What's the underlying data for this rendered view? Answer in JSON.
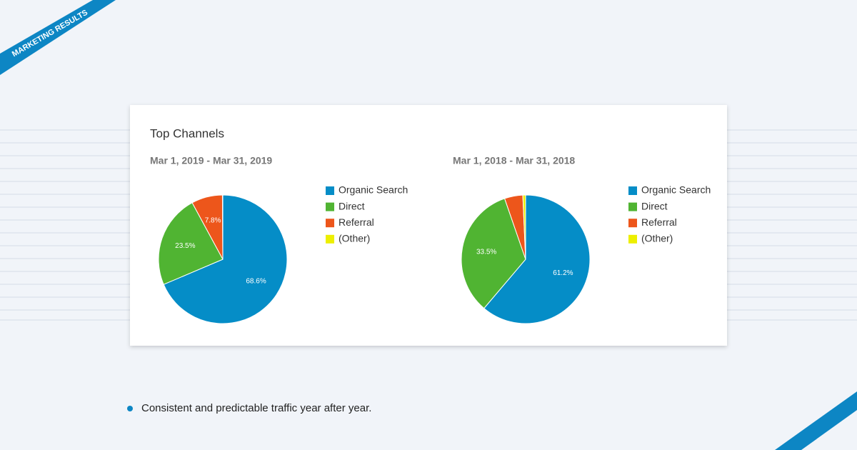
{
  "ribbon": "MARKETING RESULTS",
  "title": "Top Channels",
  "bullet": "Consistent and predictable traffic year after year.",
  "chart_data": [
    {
      "type": "pie",
      "subtitle": "Mar 1, 2019 - Mar 31, 2019",
      "categories": [
        "Organic Search",
        "Direct",
        "Referral",
        "(Other)"
      ],
      "values": [
        68.6,
        23.5,
        7.8,
        0.1
      ],
      "value_labels": [
        "68.6%",
        "23.5%",
        "7.8%",
        null
      ],
      "colors": [
        "#058dc7",
        "#50b432",
        "#ed561b",
        "#edef00"
      ]
    },
    {
      "type": "pie",
      "subtitle": "Mar 1, 2018 - Mar 31, 2018",
      "categories": [
        "Organic Search",
        "Direct",
        "Referral",
        "(Other)"
      ],
      "values": [
        61.2,
        33.5,
        4.6,
        0.7
      ],
      "value_labels": [
        "61.2%",
        "33.5%",
        null,
        null
      ],
      "colors": [
        "#058dc7",
        "#50b432",
        "#ed561b",
        "#edef00"
      ]
    }
  ]
}
